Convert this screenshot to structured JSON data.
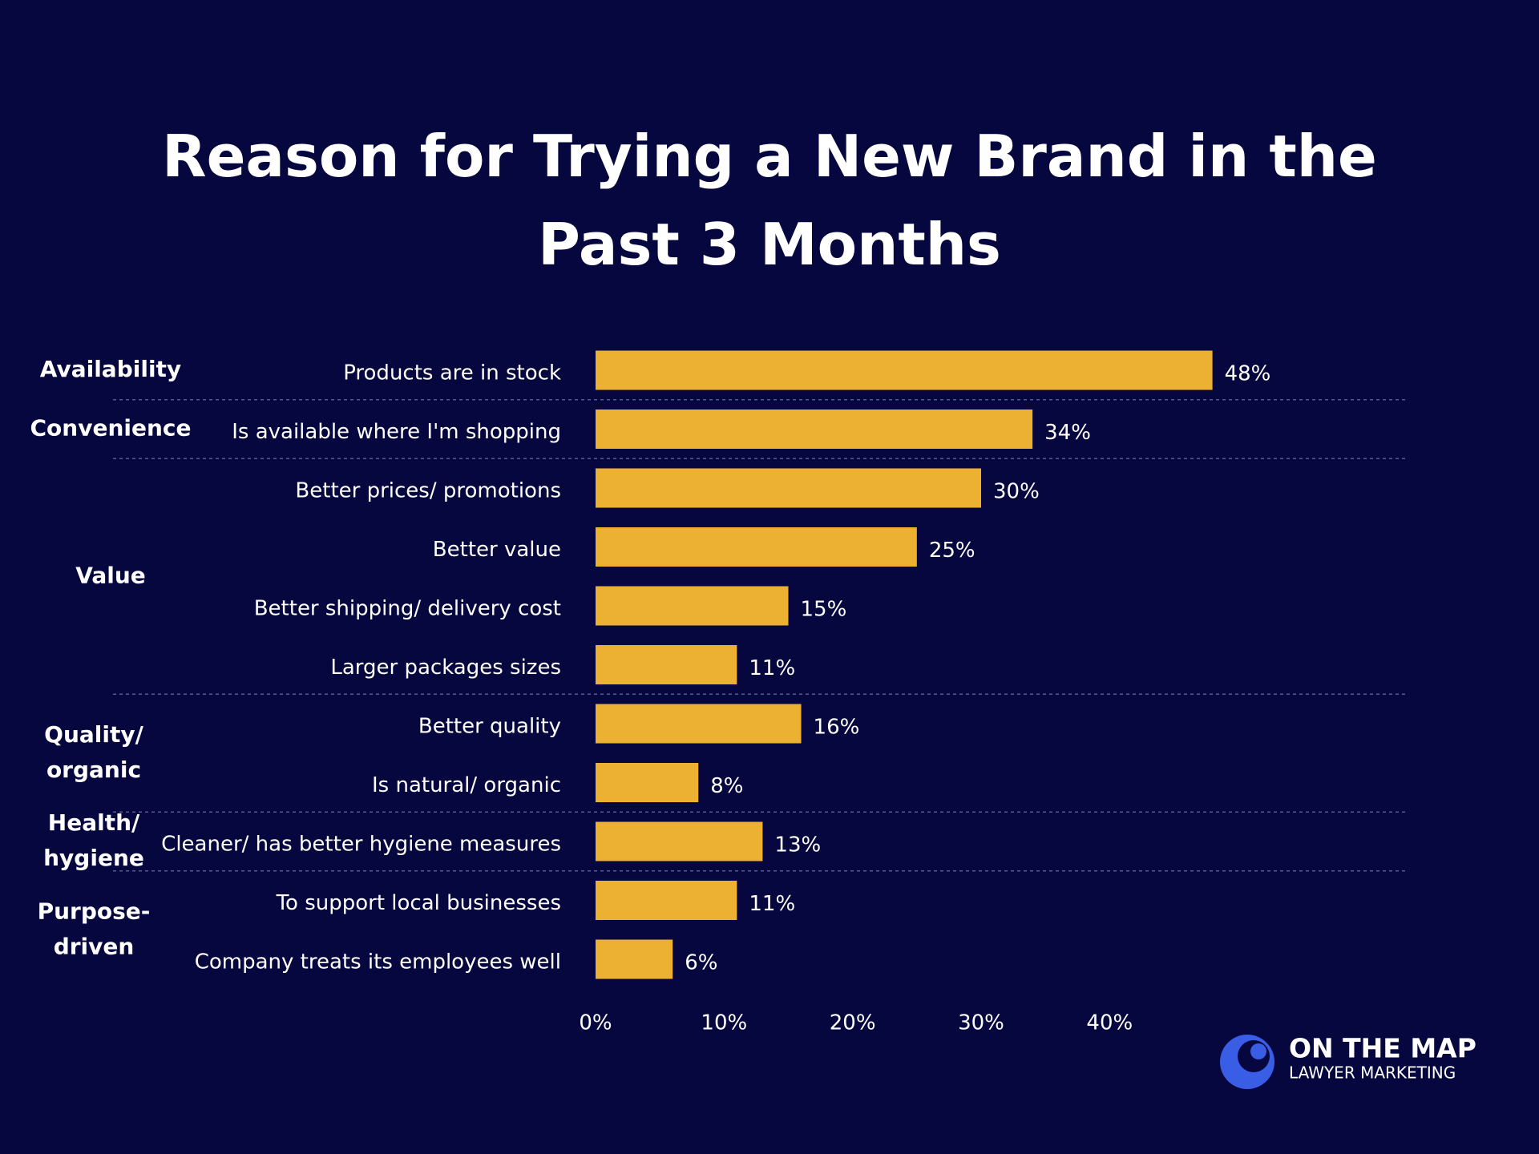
{
  "chart_data": {
    "type": "bar",
    "orientation": "horizontal",
    "title": "Reason for Trying a New Brand in the Past 3 Months",
    "color": "#ecb032",
    "xlim": [
      0,
      60
    ],
    "xticks": [
      {
        "value": 0,
        "label": "0%"
      },
      {
        "value": 10,
        "label": "10%"
      },
      {
        "value": 20,
        "label": "20%"
      },
      {
        "value": 30,
        "label": "30%"
      },
      {
        "value": 40,
        "label": "40%"
      }
    ],
    "groups": [
      {
        "label_lines": [
          "Availability"
        ],
        "categories": [
          "Products are in stock"
        ],
        "values": [
          48
        ],
        "value_labels": [
          "48%"
        ]
      },
      {
        "label_lines": [
          "Convenience"
        ],
        "categories": [
          "Is available where I'm shopping"
        ],
        "values": [
          34
        ],
        "value_labels": [
          "34%"
        ]
      },
      {
        "label_lines": [
          "Value"
        ],
        "categories": [
          "Better prices/ promotions",
          "Better value",
          "Better shipping/ delivery cost",
          "Larger packages sizes"
        ],
        "values": [
          30,
          25,
          15,
          11
        ],
        "value_labels": [
          "30%",
          "25%",
          "15%",
          "11%"
        ]
      },
      {
        "label_lines": [
          "Quality/",
          "organic"
        ],
        "categories": [
          "Better quality",
          "Is natural/ organic"
        ],
        "values": [
          16,
          8
        ],
        "value_labels": [
          "16%",
          "8%"
        ]
      },
      {
        "label_lines": [
          "Health/",
          "hygiene"
        ],
        "categories": [
          "Cleaner/ has better hygiene measures"
        ],
        "values": [
          13
        ],
        "value_labels": [
          "13%"
        ]
      },
      {
        "label_lines": [
          "Purpose-",
          "driven"
        ],
        "categories": [
          "To support local businesses",
          "Company treats its employees well"
        ],
        "values": [
          11,
          6
        ],
        "value_labels": [
          "11%",
          "6%"
        ]
      }
    ]
  },
  "logo": {
    "name": "ON THE MAP",
    "tagline": "LAWYER MARKETING"
  }
}
